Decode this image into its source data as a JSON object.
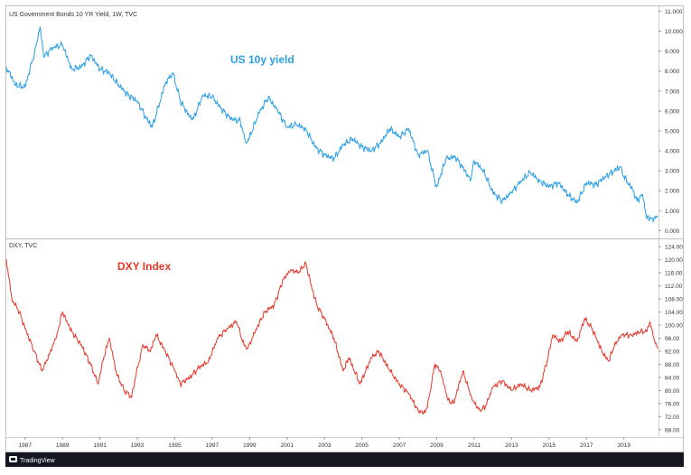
{
  "chart_data": [
    {
      "type": "line",
      "title": "US Government Bonds 10 YR Yield, 1W, TVC",
      "annotation": "US 10y yield",
      "color": "#2a9fe6",
      "xlim": [
        1986.0,
        2020.8
      ],
      "ylim": [
        -0.3,
        11.2
      ],
      "y_ticks": [
        "11.000",
        "10.000",
        "9.000",
        "8.000",
        "7.000",
        "6.000",
        "5.000",
        "4.000",
        "3.000",
        "2.000",
        "1.000",
        "0.000"
      ],
      "x": [
        1986.0,
        1986.5,
        1987.0,
        1987.5,
        1987.8,
        1988.0,
        1988.5,
        1989.0,
        1989.5,
        1990.0,
        1990.5,
        1991.0,
        1991.5,
        1992.0,
        1992.5,
        1993.0,
        1993.5,
        1993.8,
        1994.0,
        1994.5,
        1994.9,
        1995.3,
        1995.8,
        1996.0,
        1996.5,
        1997.0,
        1997.5,
        1998.0,
        1998.5,
        1998.8,
        1999.0,
        1999.5,
        2000.0,
        2000.5,
        2001.0,
        2001.5,
        2002.0,
        2002.5,
        2003.0,
        2003.5,
        2004.0,
        2004.5,
        2005.0,
        2005.5,
        2006.0,
        2006.5,
        2007.0,
        2007.5,
        2008.0,
        2008.5,
        2008.9,
        2009.0,
        2009.5,
        2010.0,
        2010.5,
        2010.8,
        2011.0,
        2011.5,
        2012.0,
        2012.5,
        2013.0,
        2013.5,
        2014.0,
        2014.5,
        2015.0,
        2015.5,
        2016.0,
        2016.5,
        2017.0,
        2017.5,
        2018.0,
        2018.5,
        2018.8,
        2019.0,
        2019.5,
        2019.7,
        2020.0,
        2020.2,
        2020.5,
        2020.8
      ],
      "values": [
        8.2,
        7.3,
        7.2,
        8.9,
        10.2,
        8.7,
        9.2,
        9.3,
        8.1,
        8.2,
        8.8,
        8.1,
        7.9,
        7.3,
        6.8,
        6.5,
        5.6,
        5.2,
        5.8,
        7.4,
        7.9,
        6.5,
        5.7,
        5.6,
        6.8,
        6.7,
        6.1,
        5.6,
        5.5,
        4.4,
        4.7,
        5.9,
        6.7,
        6.0,
        5.2,
        5.3,
        5.1,
        4.2,
        3.8,
        3.6,
        4.3,
        4.6,
        4.2,
        4.0,
        4.4,
        5.1,
        4.7,
        5.1,
        3.8,
        4.0,
        2.5,
        2.2,
        3.6,
        3.7,
        3.0,
        2.5,
        3.5,
        3.0,
        1.9,
        1.5,
        1.9,
        2.5,
        2.9,
        2.5,
        2.2,
        2.4,
        1.8,
        1.4,
        2.4,
        2.3,
        2.7,
        3.0,
        3.2,
        2.7,
        2.0,
        1.5,
        1.8,
        0.7,
        0.6,
        0.7
      ]
    },
    {
      "type": "line",
      "title": "DXY, TVC",
      "annotation": "DXY Index",
      "color": "#e8372a",
      "xlim": [
        1986.0,
        2020.8
      ],
      "ylim": [
        66.0,
        126.0
      ],
      "y_ticks": [
        "124.00",
        "120.00",
        "116.00",
        "112.00",
        "108.00",
        "104.00",
        "100.00",
        "96.00",
        "92.00",
        "88.00",
        "84.00",
        "80.00",
        "76.00",
        "72.00",
        "68.00"
      ],
      "x": [
        1986.0,
        1986.3,
        1986.7,
        1987.0,
        1987.5,
        1987.9,
        1988.3,
        1988.7,
        1989.0,
        1989.5,
        1990.0,
        1990.5,
        1990.9,
        1991.2,
        1991.5,
        1991.9,
        1992.3,
        1992.7,
        1992.9,
        1993.3,
        1993.7,
        1994.0,
        1994.5,
        1995.0,
        1995.3,
        1995.8,
        1996.3,
        1996.8,
        1997.3,
        1997.8,
        1998.3,
        1998.7,
        1998.9,
        1999.3,
        1999.8,
        2000.3,
        2000.8,
        2001.2,
        2001.6,
        2002.0,
        2002.3,
        2002.6,
        2003.0,
        2003.5,
        2004.0,
        2004.3,
        2004.9,
        2005.5,
        2005.9,
        2006.5,
        2007.0,
        2007.5,
        2008.0,
        2008.3,
        2008.5,
        2008.9,
        2009.2,
        2009.6,
        2009.9,
        2010.4,
        2010.9,
        2011.3,
        2011.6,
        2012.0,
        2012.5,
        2013.0,
        2013.5,
        2014.0,
        2014.5,
        2014.9,
        2015.2,
        2015.6,
        2016.0,
        2016.5,
        2016.9,
        2017.3,
        2017.9,
        2018.2,
        2018.5,
        2018.9,
        2019.4,
        2019.9,
        2020.2,
        2020.4,
        2020.6,
        2020.8
      ],
      "values": [
        120.0,
        108.0,
        104.0,
        99.0,
        92.0,
        86.0,
        91.0,
        97.0,
        104.0,
        98.0,
        94.0,
        88.0,
        82.0,
        90.0,
        96.0,
        85.0,
        80.0,
        78.0,
        84.0,
        94.0,
        92.0,
        97.0,
        92.0,
        86.0,
        82.0,
        84.0,
        87.0,
        89.0,
        96.0,
        99.0,
        101.0,
        94.0,
        93.0,
        98.0,
        104.0,
        106.0,
        114.0,
        117.0,
        116.0,
        119.0,
        112.0,
        106.0,
        102.0,
        96.0,
        86.0,
        90.0,
        82.0,
        90.0,
        92.0,
        86.0,
        82.0,
        79.0,
        74.0,
        73.0,
        75.0,
        88.0,
        86.0,
        77.0,
        76.0,
        86.0,
        77.0,
        74.0,
        75.0,
        81.0,
        83.0,
        80.0,
        82.0,
        80.0,
        81.0,
        89.0,
        97.0,
        95.0,
        98.0,
        95.0,
        102.0,
        99.0,
        91.0,
        89.0,
        94.0,
        97.0,
        97.0,
        98.0,
        98.0,
        101.0,
        96.0,
        93.0
      ]
    }
  ],
  "x_axis": {
    "ticks": [
      "1987",
      "1989",
      "1991",
      "1993",
      "1995",
      "1997",
      "1999",
      "2001",
      "2003",
      "2005",
      "2007",
      "2009",
      "2011",
      "2013",
      "2015",
      "2017",
      "2019"
    ],
    "tick_values": [
      1987,
      1989,
      1991,
      1993,
      1995,
      1997,
      1999,
      2001,
      2003,
      2005,
      2007,
      2009,
      2011,
      2013,
      2015,
      2017,
      2019
    ]
  },
  "footer": {
    "logo_text": "TradingView"
  },
  "colors": {
    "axis_text": "#333333",
    "border": "#bfbfbf",
    "footer_bg": "#131722"
  }
}
